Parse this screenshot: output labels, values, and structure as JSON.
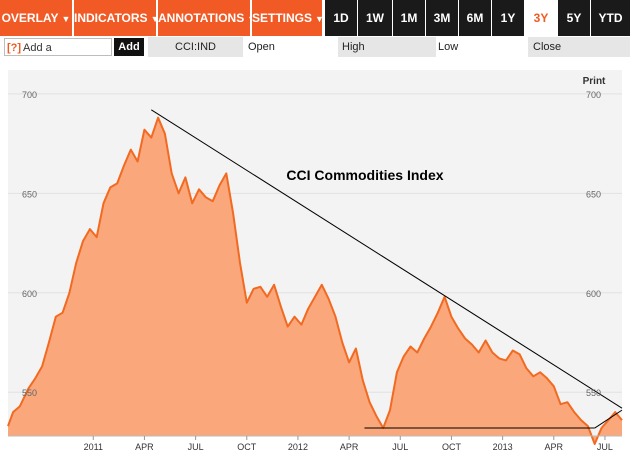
{
  "toolbar": {
    "menus": [
      "OVERLAY",
      "INDICATORS",
      "ANNOTATIONS",
      "SETTINGS"
    ],
    "ranges": [
      "1D",
      "1W",
      "1M",
      "3M",
      "6M",
      "1Y",
      "3Y",
      "5Y",
      "YTD"
    ],
    "active_range": "3Y"
  },
  "quote_bar": {
    "help": "[?]",
    "compare_label": "Add a Comparison",
    "add_label": "Add",
    "symbol": "CCI:IND",
    "open_label": "Open",
    "high_label": "High",
    "low_label": "Low",
    "close_label": "Close"
  },
  "chart": {
    "print_label": "Print",
    "fill_color": "#f9a77b",
    "line_color": "#f26a21"
  },
  "chart_data": {
    "type": "area",
    "title": "CCI Commodities Index",
    "ylim": [
      528,
      712
    ],
    "y_ticks": [
      550,
      600,
      650,
      700
    ],
    "x_range": [
      0,
      36
    ],
    "x_ticks": [
      {
        "label": "2011",
        "x": 5
      },
      {
        "label": "APR",
        "x": 8
      },
      {
        "label": "JUL",
        "x": 11
      },
      {
        "label": "OCT",
        "x": 14
      },
      {
        "label": "2012",
        "x": 17
      },
      {
        "label": "APR",
        "x": 20
      },
      {
        "label": "JUL",
        "x": 23
      },
      {
        "label": "OCT",
        "x": 26
      },
      {
        "label": "2013",
        "x": 29
      },
      {
        "label": "APR",
        "x": 32
      },
      {
        "label": "JUL",
        "x": 35
      }
    ],
    "series": [
      {
        "name": "CCI:IND",
        "points": [
          [
            0,
            533
          ],
          [
            0.3,
            540
          ],
          [
            0.7,
            543
          ],
          [
            1.2,
            552
          ],
          [
            1.6,
            557
          ],
          [
            2.0,
            563
          ],
          [
            2.4,
            575
          ],
          [
            2.8,
            588
          ],
          [
            3.2,
            590
          ],
          [
            3.6,
            600
          ],
          [
            4.0,
            615
          ],
          [
            4.4,
            626
          ],
          [
            4.8,
            632
          ],
          [
            5.2,
            628
          ],
          [
            5.6,
            645
          ],
          [
            6.0,
            653
          ],
          [
            6.4,
            655
          ],
          [
            6.8,
            664
          ],
          [
            7.2,
            672
          ],
          [
            7.6,
            666
          ],
          [
            8.0,
            682
          ],
          [
            8.4,
            678
          ],
          [
            8.8,
            688
          ],
          [
            9.2,
            680
          ],
          [
            9.6,
            660
          ],
          [
            10.0,
            650
          ],
          [
            10.4,
            658
          ],
          [
            10.8,
            645
          ],
          [
            11.2,
            652
          ],
          [
            11.6,
            648
          ],
          [
            12.0,
            646
          ],
          [
            12.4,
            654
          ],
          [
            12.8,
            660
          ],
          [
            13.2,
            640
          ],
          [
            13.6,
            615
          ],
          [
            14.0,
            595
          ],
          [
            14.4,
            602
          ],
          [
            14.8,
            603
          ],
          [
            15.2,
            598
          ],
          [
            15.6,
            604
          ],
          [
            16.0,
            593
          ],
          [
            16.4,
            583
          ],
          [
            16.8,
            588
          ],
          [
            17.2,
            584
          ],
          [
            17.6,
            592
          ],
          [
            18.0,
            598
          ],
          [
            18.4,
            604
          ],
          [
            18.8,
            597
          ],
          [
            19.2,
            588
          ],
          [
            19.6,
            575
          ],
          [
            20.0,
            565
          ],
          [
            20.4,
            572
          ],
          [
            20.8,
            556
          ],
          [
            21.2,
            545
          ],
          [
            21.6,
            538
          ],
          [
            22.0,
            532
          ],
          [
            22.4,
            541
          ],
          [
            22.8,
            560
          ],
          [
            23.2,
            568
          ],
          [
            23.6,
            573
          ],
          [
            24.0,
            570
          ],
          [
            24.4,
            577
          ],
          [
            24.8,
            583
          ],
          [
            25.2,
            590
          ],
          [
            25.6,
            598
          ],
          [
            26.0,
            588
          ],
          [
            26.4,
            582
          ],
          [
            26.8,
            577
          ],
          [
            27.2,
            574
          ],
          [
            27.6,
            570
          ],
          [
            28.0,
            576
          ],
          [
            28.4,
            570
          ],
          [
            28.8,
            567
          ],
          [
            29.2,
            566
          ],
          [
            29.6,
            571
          ],
          [
            30.0,
            569
          ],
          [
            30.4,
            562
          ],
          [
            30.8,
            558
          ],
          [
            31.2,
            560
          ],
          [
            31.6,
            557
          ],
          [
            32.0,
            553
          ],
          [
            32.4,
            544
          ],
          [
            32.8,
            545
          ],
          [
            33.2,
            540
          ],
          [
            33.6,
            536
          ],
          [
            34.0,
            533
          ],
          [
            34.4,
            524
          ],
          [
            34.8,
            532
          ],
          [
            35.2,
            536
          ],
          [
            35.6,
            540
          ],
          [
            36.0,
            536
          ]
        ]
      }
    ],
    "trendlines": [
      {
        "from": [
          8.4,
          692
        ],
        "to": [
          36,
          542
        ]
      },
      {
        "from": [
          20.9,
          532
        ],
        "to": [
          34.4,
          532
        ]
      },
      {
        "from": [
          34.4,
          532
        ],
        "to": [
          36,
          541
        ]
      }
    ]
  }
}
